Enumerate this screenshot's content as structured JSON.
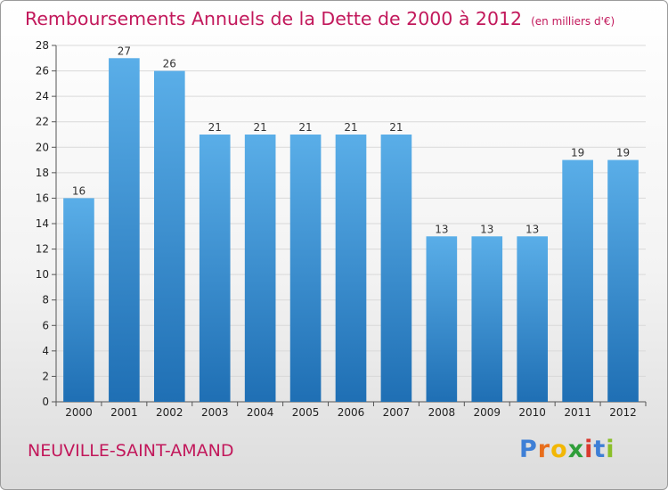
{
  "header": {
    "title": "Remboursements Annuels de la Dette de 2000 à 2012",
    "unit": "(en milliers d'€)"
  },
  "footer": {
    "town": "NEUVILLE-SAINT-AMAND",
    "brand_letters": [
      {
        "ch": "P",
        "color": "#3e7fd6"
      },
      {
        "ch": "r",
        "color": "#e86e1c"
      },
      {
        "ch": "o",
        "color": "#f2b705"
      },
      {
        "ch": "x",
        "color": "#2f9e3a"
      },
      {
        "ch": "i",
        "color": "#d93a2f"
      },
      {
        "ch": "t",
        "color": "#3e7fd6"
      },
      {
        "ch": "i",
        "color": "#8bbf2a"
      }
    ]
  },
  "colors": {
    "accent_text": "#c2185b",
    "bar_top": "#5aaee8",
    "bar_bottom": "#1f6fb4",
    "grid": "#d9d9d9"
  },
  "chart_data": {
    "type": "bar",
    "title": "Remboursements Annuels de la Dette de 2000 à 2012",
    "subtitle": "(en milliers d'€)",
    "categories": [
      "2000",
      "2001",
      "2002",
      "2003",
      "2004",
      "2005",
      "2006",
      "2007",
      "2008",
      "2009",
      "2010",
      "2011",
      "2012"
    ],
    "values": [
      16,
      27,
      26,
      21,
      21,
      21,
      21,
      21,
      13,
      13,
      13,
      19,
      19
    ],
    "ylim": [
      0,
      28
    ],
    "yticks": [
      0,
      2,
      4,
      6,
      8,
      10,
      12,
      14,
      16,
      18,
      20,
      22,
      24,
      26,
      28
    ],
    "grid": true,
    "data_labels": true
  }
}
